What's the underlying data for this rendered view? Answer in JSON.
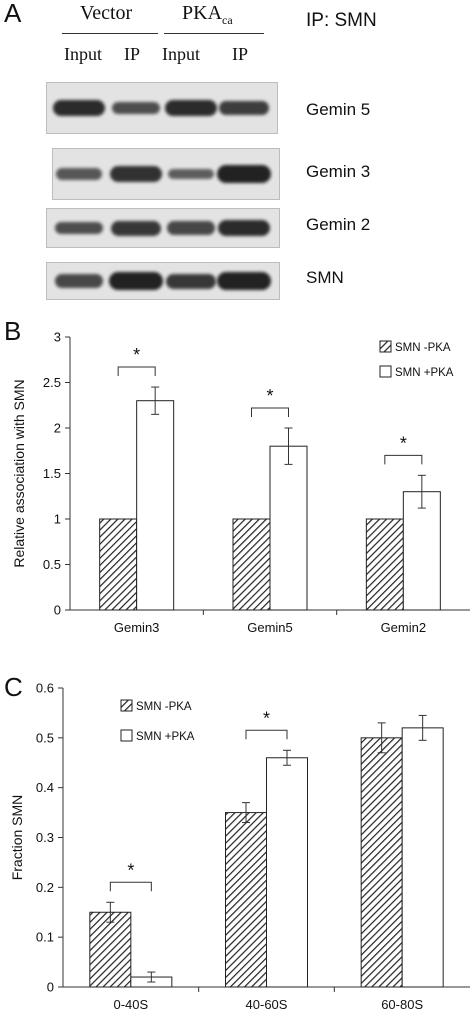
{
  "panel_a": {
    "letter": "A",
    "group_vector": "Vector",
    "group_pka": "PKA",
    "group_pka_sub": "ca",
    "ip_label": "IP: SMN",
    "lanes": [
      "Input",
      "IP",
      "Input",
      "IP"
    ],
    "blots": [
      {
        "label": "Gemin 5",
        "intensity": [
          0.85,
          0.55,
          0.85,
          0.7
        ]
      },
      {
        "label": "Gemin 3",
        "intensity": [
          0.45,
          0.8,
          0.4,
          0.95
        ]
      },
      {
        "label": "Gemin 2",
        "intensity": [
          0.55,
          0.75,
          0.6,
          0.85
        ]
      },
      {
        "label": "SMN",
        "intensity": [
          0.6,
          0.95,
          0.75,
          0.95
        ]
      }
    ],
    "band_color": "#1c1c1c",
    "blot_bg": "#e3e3e3"
  },
  "chart_data": [
    {
      "panel": "B",
      "type": "bar",
      "ylabel": "Relative association with SMN",
      "ylim": [
        0,
        3
      ],
      "yticks": [
        "0",
        "0.5",
        "1",
        "1.5",
        "2",
        "2.5",
        "3"
      ],
      "categories": [
        "Gemin3",
        "Gemin5",
        "Gemin2"
      ],
      "series": [
        {
          "name": "SMN -PKA",
          "values": [
            1.0,
            1.0,
            1.0
          ],
          "errors": [
            0,
            0,
            0
          ],
          "fill": "hatched"
        },
        {
          "name": "SMN +PKA",
          "values": [
            2.3,
            1.8,
            1.3
          ],
          "errors": [
            0.15,
            0.2,
            0.18
          ],
          "fill": "white"
        }
      ],
      "significance": [
        "*",
        "*",
        "*"
      ],
      "legend_position": "top-right",
      "grid": false
    },
    {
      "panel": "C",
      "type": "bar",
      "ylabel": "Fraction SMN",
      "ylim": [
        0,
        0.6
      ],
      "yticks": [
        "0",
        "0.1",
        "0.2",
        "0.3",
        "0.4",
        "0.5",
        "0.6"
      ],
      "categories": [
        "0-40S",
        "40-60S",
        "60-80S"
      ],
      "series": [
        {
          "name": "SMN -PKA",
          "values": [
            0.15,
            0.35,
            0.5
          ],
          "errors": [
            0.02,
            0.02,
            0.03
          ],
          "fill": "hatched"
        },
        {
          "name": "SMN +PKA",
          "values": [
            0.02,
            0.46,
            0.52
          ],
          "errors": [
            0.01,
            0.015,
            0.025
          ],
          "fill": "white"
        }
      ],
      "significance": [
        "*",
        "*",
        ""
      ],
      "legend_position": "top-left",
      "grid": false
    }
  ]
}
